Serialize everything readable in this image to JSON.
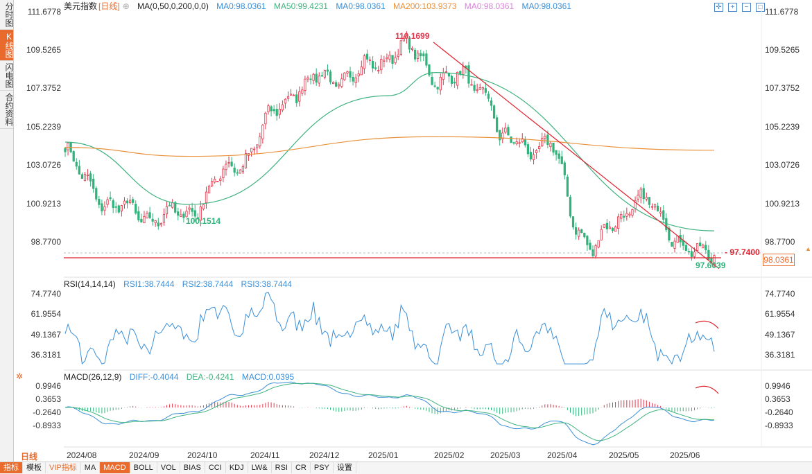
{
  "sidebar": {
    "tabs": [
      {
        "label": "分时图",
        "active": false
      },
      {
        "label": "K线图",
        "active": true
      },
      {
        "label": "闪电图",
        "active": false
      },
      {
        "label": "合约资料",
        "active": false
      }
    ]
  },
  "header": {
    "title": "美元指数",
    "period": "[日线]",
    "ma_params": "MA(0,50,0,200,0,0)",
    "ma_values": [
      {
        "label": "MA0:98.0361",
        "color": "#3a8fd8"
      },
      {
        "label": "MA50:99.4231",
        "color": "#3fb27f"
      },
      {
        "label": "MA0:98.0361",
        "color": "#3a8fd8"
      },
      {
        "label": "MA200:103.9373",
        "color": "#e8913a"
      },
      {
        "label": "MA0:98.0361",
        "color": "#d984d9"
      },
      {
        "label": "MA0:98.0361",
        "color": "#3a8fd8"
      }
    ]
  },
  "rsi_header": {
    "name": "RSI(14,14,14)",
    "rsi1": "RSI1:38.7444",
    "rsi2": "RSI2:38.7444",
    "rsi3": "RSI3:38.7444"
  },
  "macd_header": {
    "name": "MACD(26,12,9)",
    "diff": "DIFF:-0.4044",
    "dea": "DEA:-0.4241",
    "macd": "MACD:0.0395"
  },
  "colors": {
    "up": "#e0364a",
    "down": "#2fb37a",
    "accent": "#e86a2c",
    "ma50": "#3fb27f",
    "ma200": "#e8913a",
    "rsi": "#3a8fd8",
    "trend": "#e0212f"
  },
  "chart_data": [
    {
      "type": "candlestick",
      "title": "美元指数 [日线]",
      "y_ticks": [
        "111.6778",
        "109.5265",
        "107.3752",
        "105.2239",
        "103.0726",
        "100.9213",
        "98.7700"
      ],
      "ylim": [
        96.9,
        111.9
      ],
      "x_ticks": [
        "2024/08",
        "2024/09",
        "2024/10",
        "2024/11",
        "2024/12",
        "2025/01",
        "2025/02",
        "2025/03",
        "2025/04",
        "2025/05",
        "2025/06"
      ],
      "key_closes": [
        {
          "date": "2024/07/31",
          "close": 104.1
        },
        {
          "date": "2024/08/05",
          "close": 102.7
        },
        {
          "date": "2024/08/27",
          "close": 100.5
        },
        {
          "date": "2024/09/27",
          "close": 100.15
        },
        {
          "date": "2024/10/31",
          "close": 103.9
        },
        {
          "date": "2024/11/22",
          "close": 107.5
        },
        {
          "date": "2024/12/31",
          "close": 108.5
        },
        {
          "date": "2025/01/13",
          "close": 109.9
        },
        {
          "date": "2025/01/31",
          "close": 108.3
        },
        {
          "date": "2025/02/28",
          "close": 107.3
        },
        {
          "date": "2025/03/05",
          "close": 104.3
        },
        {
          "date": "2025/03/31",
          "close": 104.2
        },
        {
          "date": "2025/04/11",
          "close": 100.1
        },
        {
          "date": "2025/04/21",
          "close": 98.3
        },
        {
          "date": "2025/05/12",
          "close": 101.4
        },
        {
          "date": "2025/05/31",
          "close": 99.4
        },
        {
          "date": "2025/06/12",
          "close": 97.8
        },
        {
          "date": "2025/06/20",
          "close": 98.04
        }
      ],
      "annotations": [
        {
          "label": "110.1699",
          "kind": "high"
        },
        {
          "label": "100.1514",
          "kind": "low"
        },
        {
          "label": "97.6039",
          "kind": "low"
        },
        {
          "label": "97.7400",
          "kind": "level"
        },
        {
          "label": "98.0361",
          "kind": "last_price"
        }
      ],
      "series": [
        {
          "name": "MA50",
          "endpoints": [
            [
              "2024/07/31",
              104.4
            ],
            [
              "2024/10/01",
              100.9
            ],
            [
              "2025/01/08",
              107.0
            ],
            [
              "2025/02/01",
              108.3
            ],
            [
              "2025/06/20",
              99.42
            ]
          ]
        },
        {
          "name": "MA200",
          "endpoints": [
            [
              "2024/07/31",
              104.1
            ],
            [
              "2024/10/01",
              103.6
            ],
            [
              "2025/02/01",
              104.7
            ],
            [
              "2025/06/20",
              103.94
            ]
          ]
        }
      ]
    },
    {
      "type": "line",
      "title": "RSI(14,14,14)",
      "y_ticks": [
        "74.7740",
        "61.9554",
        "49.1367",
        "36.3181"
      ],
      "ylim": [
        28,
        79
      ],
      "last": 38.7444
    },
    {
      "type": "bar",
      "title": "MACD(26,12,9)",
      "y_ticks": [
        "0.9946",
        "0.3653",
        "-0.2640",
        "-0.8933"
      ],
      "ylim": [
        -1.7,
        1.25
      ],
      "last": {
        "diff": -0.4044,
        "dea": -0.4241,
        "macd": 0.0395
      }
    }
  ],
  "period_label": "日线",
  "toolbar": {
    "items": [
      "指标",
      "模板",
      "VIP指标",
      "MA",
      "MACD",
      "BOLL",
      "VOL",
      "BIAS",
      "CCI",
      "KDJ",
      "LW&",
      "RSI",
      "CR",
      "PSY",
      "设置"
    ]
  }
}
